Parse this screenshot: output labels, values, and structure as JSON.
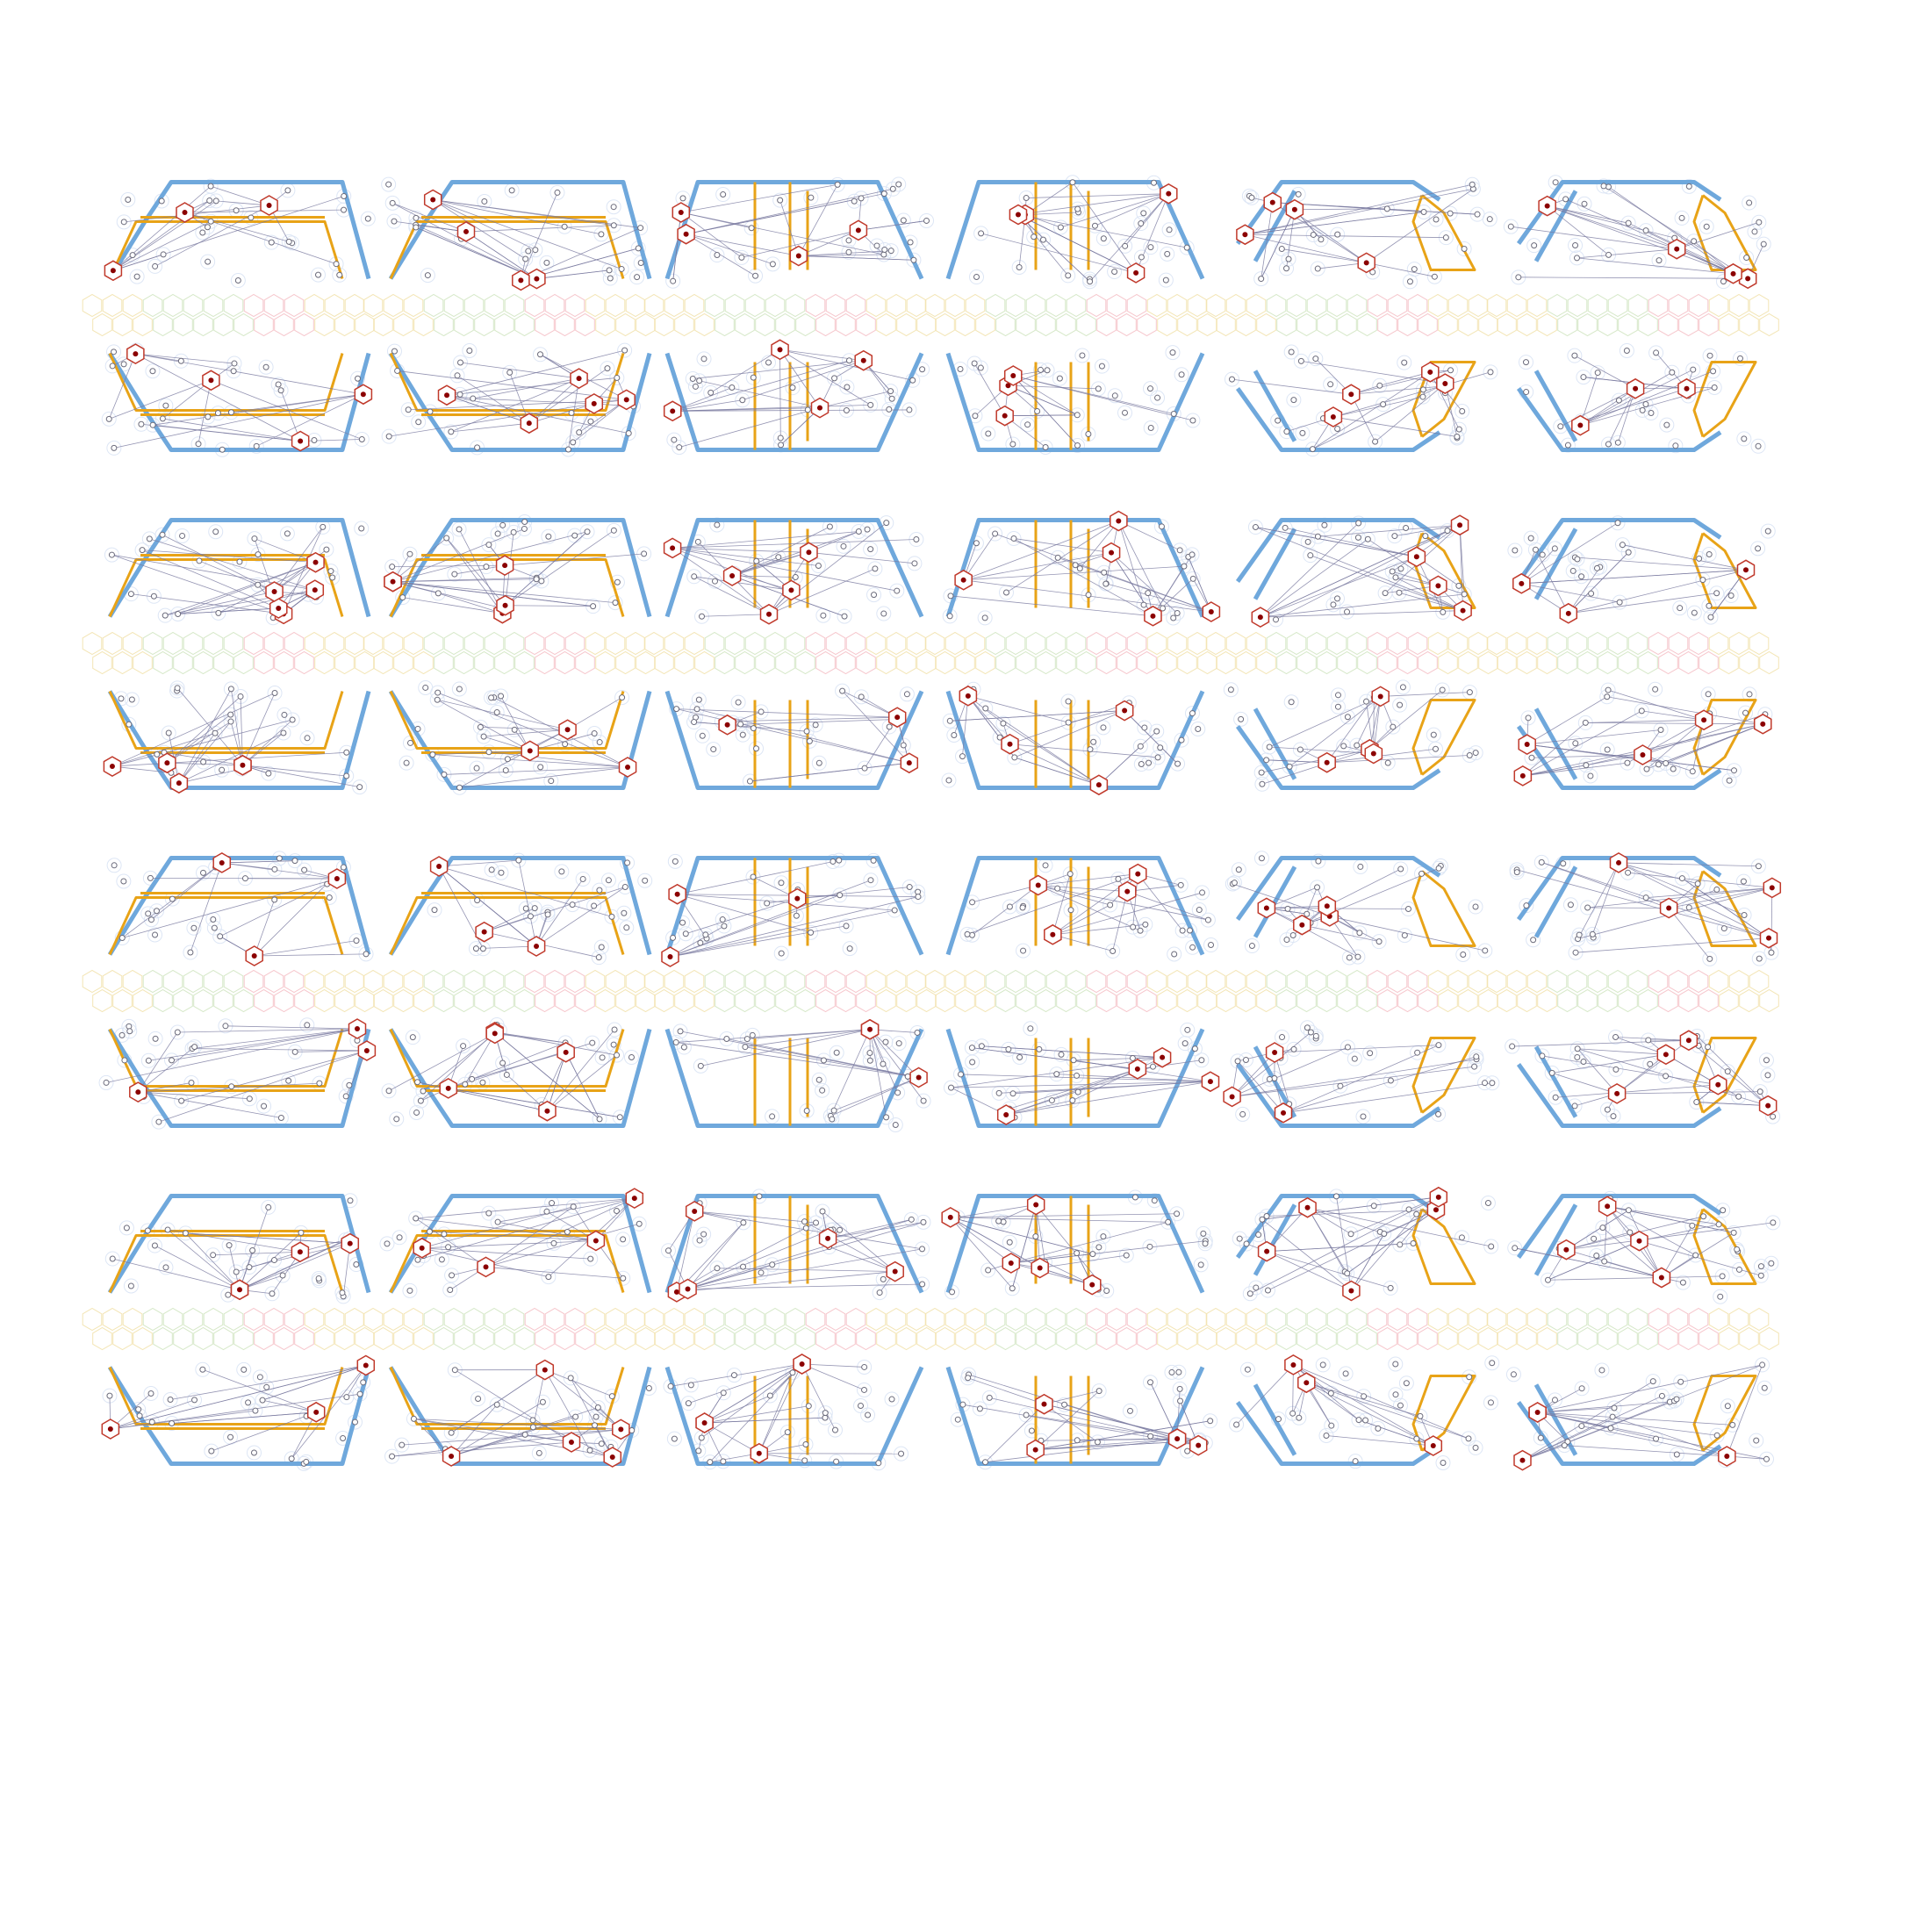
{
  "figure": {
    "rows": 4,
    "cols": 6,
    "panels": [
      {
        "id": "r1c1",
        "layout": "hexagon"
      },
      {
        "id": "r1c2",
        "layout": "hexagon"
      },
      {
        "id": "r1c3",
        "layout": "trapezoid-vertical"
      },
      {
        "id": "r1c4",
        "layout": "trapezoid-vertical"
      },
      {
        "id": "r1c5",
        "layout": "loop"
      },
      {
        "id": "r1c6",
        "layout": "loop"
      },
      {
        "id": "r2c1",
        "layout": "hexagon"
      },
      {
        "id": "r2c2",
        "layout": "hexagon"
      },
      {
        "id": "r2c3",
        "layout": "trapezoid-vertical"
      },
      {
        "id": "r2c4",
        "layout": "trapezoid-vertical"
      },
      {
        "id": "r2c5",
        "layout": "loop"
      },
      {
        "id": "r2c6",
        "layout": "loop"
      },
      {
        "id": "r3c1",
        "layout": "hexagon"
      },
      {
        "id": "r3c2",
        "layout": "hexagon"
      },
      {
        "id": "r3c3",
        "layout": "trapezoid-vertical"
      },
      {
        "id": "r3c4",
        "layout": "trapezoid-vertical"
      },
      {
        "id": "r3c5",
        "layout": "loop"
      },
      {
        "id": "r3c6",
        "layout": "loop"
      },
      {
        "id": "r4c1",
        "layout": "hexagon"
      },
      {
        "id": "r4c2",
        "layout": "hexagon"
      },
      {
        "id": "r4c3",
        "layout": "trapezoid-vertical"
      },
      {
        "id": "r4c4",
        "layout": "trapezoid-vertical"
      },
      {
        "id": "r4c5",
        "layout": "loop"
      },
      {
        "id": "r4c6",
        "layout": "loop"
      }
    ]
  },
  "colors": {
    "route_blue": "#6fa8dc",
    "route_orange": "#e8a317",
    "route_overlap": "#c4a35a",
    "station_marker": "#c0392b",
    "station_dot": "#8b0000",
    "node_outline": "#6b6b7b",
    "link_line": "#7a7aa0",
    "grid_hex_pink": "#f6c6cc",
    "grid_hex_green": "#d6e8c8",
    "grid_hex_yellow": "#f3e5b5",
    "grid_hex_blue": "#dde6f5"
  }
}
